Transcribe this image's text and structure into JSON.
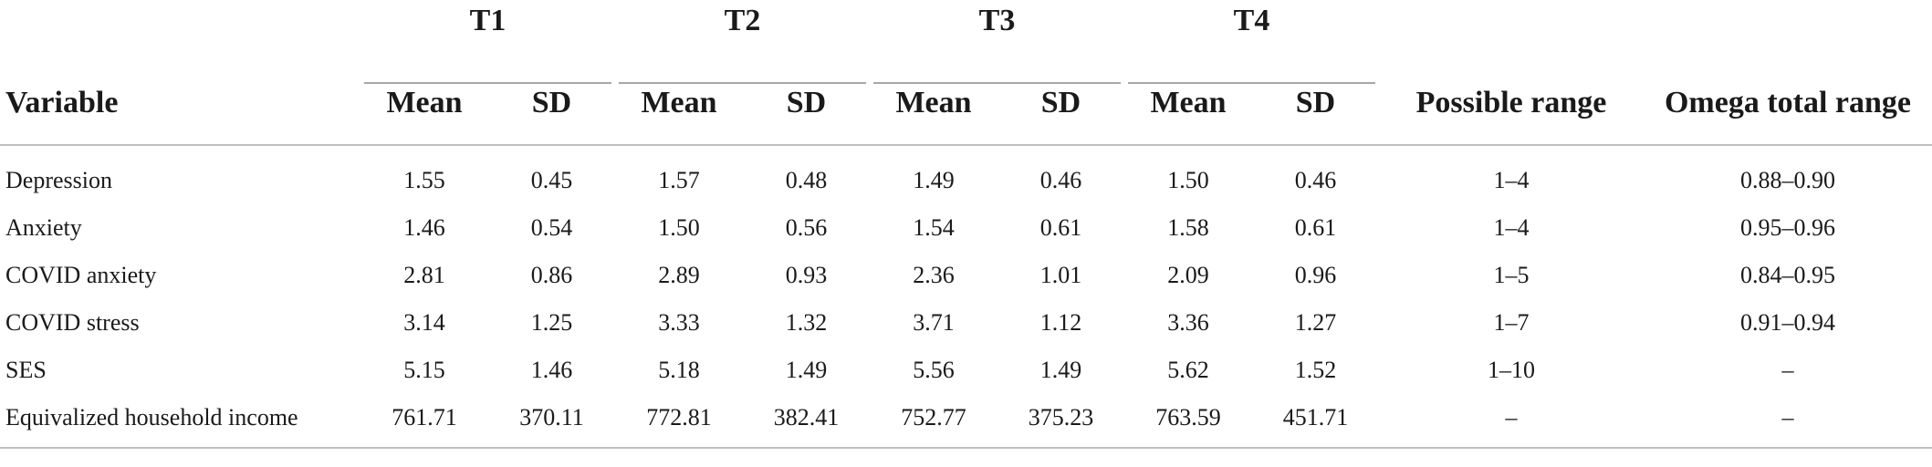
{
  "groups": [
    "T1",
    "T2",
    "T3",
    "T4"
  ],
  "headers": {
    "variable": "Variable",
    "mean": "Mean",
    "sd": "SD",
    "possible_range": "Possible range",
    "omega_total_range": "Omega total range"
  },
  "rows": [
    {
      "variable": "Depression",
      "t1_mean": "1.55",
      "t1_sd": "0.45",
      "t2_mean": "1.57",
      "t2_sd": "0.48",
      "t3_mean": "1.49",
      "t3_sd": "0.46",
      "t4_mean": "1.50",
      "t4_sd": "0.46",
      "possible_range": "1–4",
      "omega": "0.88–0.90"
    },
    {
      "variable": "Anxiety",
      "t1_mean": "1.46",
      "t1_sd": "0.54",
      "t2_mean": "1.50",
      "t2_sd": "0.56",
      "t3_mean": "1.54",
      "t3_sd": "0.61",
      "t4_mean": "1.58",
      "t4_sd": "0.61",
      "possible_range": "1–4",
      "omega": "0.95–0.96"
    },
    {
      "variable": "COVID anxiety",
      "t1_mean": "2.81",
      "t1_sd": "0.86",
      "t2_mean": "2.89",
      "t2_sd": "0.93",
      "t3_mean": "2.36",
      "t3_sd": "1.01",
      "t4_mean": "2.09",
      "t4_sd": "0.96",
      "possible_range": "1–5",
      "omega": "0.84–0.95"
    },
    {
      "variable": "COVID stress",
      "t1_mean": "3.14",
      "t1_sd": "1.25",
      "t2_mean": "3.33",
      "t2_sd": "1.32",
      "t3_mean": "3.71",
      "t3_sd": "1.12",
      "t4_mean": "3.36",
      "t4_sd": "1.27",
      "possible_range": "1–7",
      "omega": "0.91–0.94"
    },
    {
      "variable": "SES",
      "t1_mean": "5.15",
      "t1_sd": "1.46",
      "t2_mean": "5.18",
      "t2_sd": "1.49",
      "t3_mean": "5.56",
      "t3_sd": "1.49",
      "t4_mean": "5.62",
      "t4_sd": "1.52",
      "possible_range": "1–10",
      "omega": "–"
    },
    {
      "variable": "Equivalized household income",
      "t1_mean": "761.71",
      "t1_sd": "370.11",
      "t2_mean": "772.81",
      "t2_sd": "382.41",
      "t3_mean": "752.77",
      "t3_sd": "375.23",
      "t4_mean": "763.59",
      "t4_sd": "451.71",
      "possible_range": "–",
      "omega": "–"
    }
  ]
}
